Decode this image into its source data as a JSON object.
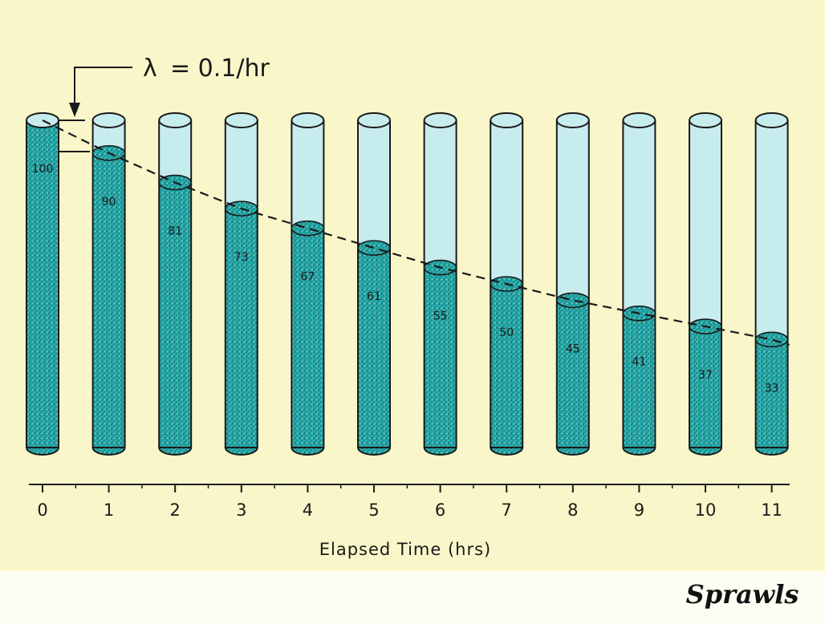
{
  "annotation": {
    "symbol": "λ",
    "rate_text": "= 0.1/hr"
  },
  "chart_data": {
    "type": "bar",
    "variant": "cylinders",
    "categories": [
      "0",
      "1",
      "2",
      "3",
      "4",
      "5",
      "6",
      "7",
      "8",
      "9",
      "10",
      "11"
    ],
    "values": [
      100,
      90,
      81,
      73,
      67,
      61,
      55,
      50,
      45,
      41,
      37,
      33
    ],
    "xlabel": "Elapsed Time (hrs)",
    "ylim": [
      0,
      100
    ]
  },
  "signature": "Sprawls",
  "colors": {
    "background": "#f9f7c9",
    "band": "#fdfdf3",
    "filled": "#2aaeae",
    "filled_speckle": "#0d3c3c",
    "empty": "#c7ecee",
    "outline": "#1a1a1a"
  }
}
